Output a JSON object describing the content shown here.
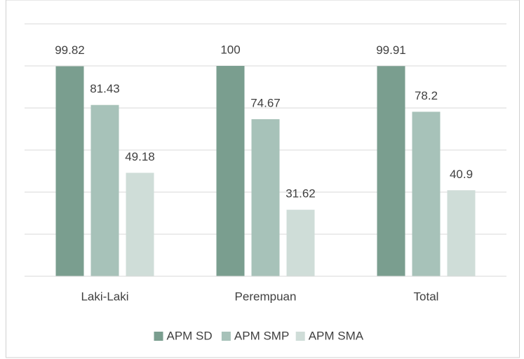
{
  "chart_data": {
    "type": "bar",
    "categories": [
      "Laki-Laki",
      "Perempuan",
      "Total"
    ],
    "series": [
      {
        "name": "APM SD",
        "color": "#7a9e8f",
        "values": [
          99.82,
          100,
          99.91
        ]
      },
      {
        "name": "APM SMP",
        "color": "#a7c2b9",
        "values": [
          81.43,
          74.67,
          78.2
        ]
      },
      {
        "name": "APM SMA",
        "color": "#cfddd8",
        "values": [
          49.18,
          31.62,
          40.9
        ]
      }
    ],
    "ylim": [
      0,
      120
    ],
    "yticks": [
      0,
      20,
      40,
      60,
      80,
      100,
      120
    ],
    "grid": true,
    "legend": "bottom"
  }
}
